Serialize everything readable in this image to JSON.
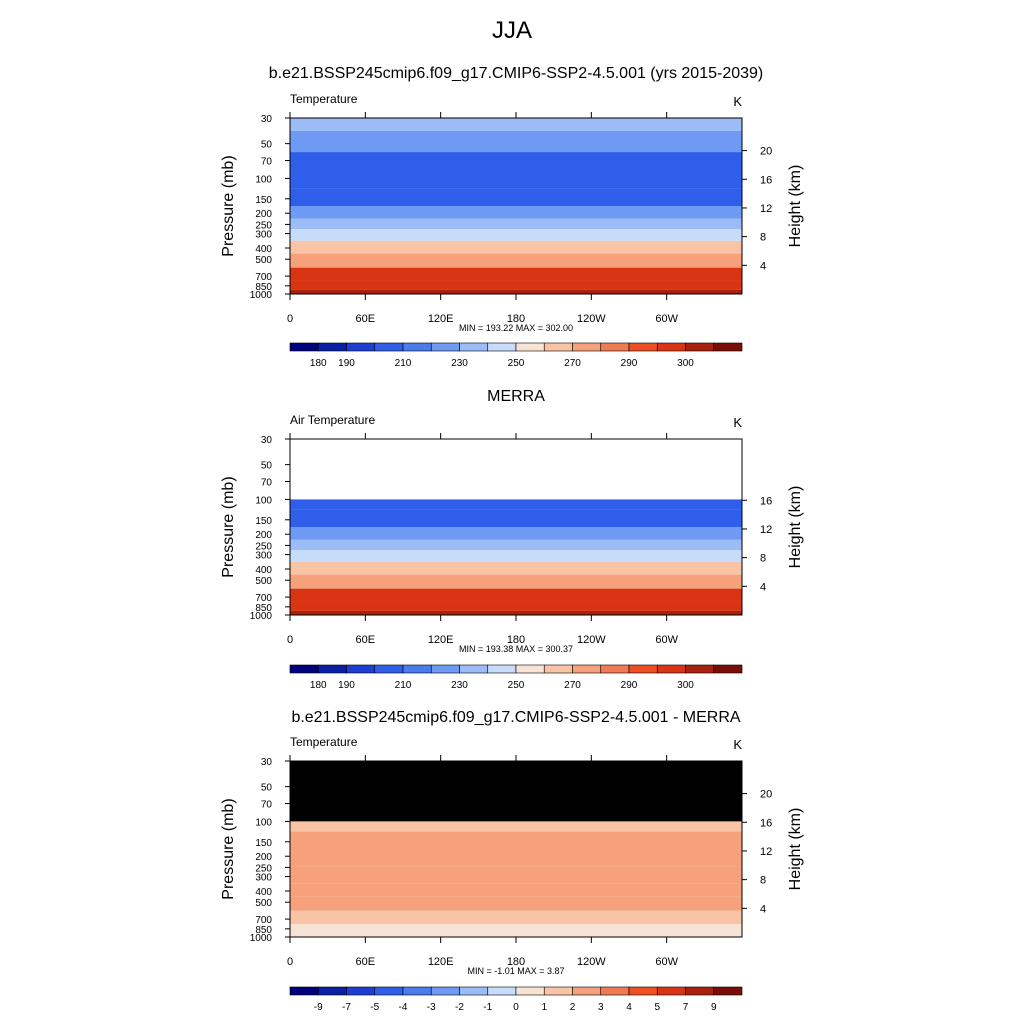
{
  "page": {
    "title": "JJA"
  },
  "chart_data": [
    {
      "type": "heatmap",
      "title": "b.e21.BSSP245cmip6.f09_g17.CMIP6-SSP2-4.5.001 (yrs 2015-2039)",
      "left_label": "Temperature",
      "units": "K",
      "ylabel": "Pressure (mb)",
      "y2label": "Height (km)",
      "x_ticks": [
        {
          "lon": 0,
          "label": "0"
        },
        {
          "lon": 60,
          "label": "60E"
        },
        {
          "lon": 120,
          "label": "120E"
        },
        {
          "lon": 180,
          "label": "180"
        },
        {
          "lon": 240,
          "label": "120W"
        },
        {
          "lon": 300,
          "label": "60W"
        }
      ],
      "y_ticks": [
        30,
        50,
        70,
        100,
        150,
        200,
        250,
        300,
        400,
        500,
        700,
        850,
        1000
      ],
      "ylim": [
        1000,
        30
      ],
      "height_ticks": [
        4,
        8,
        12,
        16,
        20
      ],
      "stats": "MIN = 193.22  MAX = 302.00",
      "colorbar_labels": [
        "180",
        "190",
        "210",
        "230",
        "250",
        "270",
        "290",
        "300"
      ],
      "field_by_pressure": [
        {
          "p": 30,
          "v": 220
        },
        {
          "p": 50,
          "v": 212
        },
        {
          "p": 70,
          "v": 205
        },
        {
          "p": 100,
          "v": 202
        },
        {
          "p": 150,
          "v": 208
        },
        {
          "p": 200,
          "v": 215
        },
        {
          "p": 250,
          "v": 228
        },
        {
          "p": 300,
          "v": 238
        },
        {
          "p": 400,
          "v": 253
        },
        {
          "p": 500,
          "v": 265
        },
        {
          "p": 700,
          "v": 282
        },
        {
          "p": 850,
          "v": 288
        },
        {
          "p": 1000,
          "v": 297
        }
      ],
      "missing_above_p": null,
      "levels": [
        180,
        190,
        200,
        210,
        220,
        230,
        240,
        250,
        260,
        270,
        280,
        290,
        300
      ]
    },
    {
      "type": "heatmap",
      "title": "MERRA",
      "left_label": "Air Temperature",
      "units": "K",
      "ylabel": "Pressure (mb)",
      "y2label": "Height (km)",
      "x_ticks": [
        {
          "lon": 0,
          "label": "0"
        },
        {
          "lon": 60,
          "label": "60E"
        },
        {
          "lon": 120,
          "label": "120E"
        },
        {
          "lon": 180,
          "label": "180"
        },
        {
          "lon": 240,
          "label": "120W"
        },
        {
          "lon": 300,
          "label": "60W"
        }
      ],
      "y_ticks": [
        30,
        50,
        70,
        100,
        150,
        200,
        250,
        300,
        400,
        500,
        700,
        850,
        1000
      ],
      "ylim": [
        1000,
        30
      ],
      "height_ticks": [
        4,
        8,
        12,
        16
      ],
      "stats": "MIN = 193.38  MAX = 300.37",
      "colorbar_labels": [
        "180",
        "190",
        "210",
        "230",
        "250",
        "270",
        "290",
        "300"
      ],
      "field_by_pressure": [
        {
          "p": 100,
          "v": 202
        },
        {
          "p": 150,
          "v": 207
        },
        {
          "p": 200,
          "v": 214
        },
        {
          "p": 250,
          "v": 227
        },
        {
          "p": 300,
          "v": 237
        },
        {
          "p": 400,
          "v": 252
        },
        {
          "p": 500,
          "v": 264
        },
        {
          "p": 700,
          "v": 281
        },
        {
          "p": 850,
          "v": 287
        },
        {
          "p": 1000,
          "v": 296
        }
      ],
      "missing_above_p": 100,
      "missing_color": "#ffffff",
      "levels": [
        180,
        190,
        200,
        210,
        220,
        230,
        240,
        250,
        260,
        270,
        280,
        290,
        300
      ]
    },
    {
      "type": "heatmap",
      "title": "b.e21.BSSP245cmip6.f09_g17.CMIP6-SSP2-4.5.001 - MERRA",
      "left_label": "Temperature",
      "units": "K",
      "ylabel": "Pressure (mb)",
      "y2label": "Height (km)",
      "x_ticks": [
        {
          "lon": 0,
          "label": "0"
        },
        {
          "lon": 60,
          "label": "60E"
        },
        {
          "lon": 120,
          "label": "120E"
        },
        {
          "lon": 180,
          "label": "180"
        },
        {
          "lon": 240,
          "label": "120W"
        },
        {
          "lon": 300,
          "label": "60W"
        }
      ],
      "y_ticks": [
        30,
        50,
        70,
        100,
        150,
        200,
        250,
        300,
        400,
        500,
        700,
        850,
        1000
      ],
      "ylim": [
        1000,
        30
      ],
      "height_ticks": [
        4,
        8,
        12,
        16,
        20
      ],
      "stats": "MIN =  -1.01  MAX =   3.87",
      "colorbar_labels": [
        "-9",
        "-7",
        "-5",
        "-4",
        "-3",
        "-2",
        "-1",
        "0",
        "1",
        "2",
        "3",
        "4",
        "5",
        "7",
        "9"
      ],
      "field_by_pressure": [
        {
          "p": 100,
          "v": 1.5
        },
        {
          "p": 150,
          "v": 2.5
        },
        {
          "p": 200,
          "v": 2.5
        },
        {
          "p": 300,
          "v": 2.5
        },
        {
          "p": 400,
          "v": 2.5
        },
        {
          "p": 500,
          "v": 2.5
        },
        {
          "p": 700,
          "v": 1.5
        },
        {
          "p": 850,
          "v": 0.5
        },
        {
          "p": 1000,
          "v": 0.5
        }
      ],
      "missing_above_p": 100,
      "missing_color": "#000000",
      "levels": [
        -9,
        -7,
        -5,
        -4,
        -3,
        -2,
        -1,
        0,
        1,
        2,
        3,
        4,
        5,
        7,
        9
      ]
    }
  ],
  "colors": {
    "palette": [
      "#00007f",
      "#0b1fa6",
      "#1c3ed2",
      "#2f5eea",
      "#4a7cf0",
      "#6f9af4",
      "#9cbcf7",
      "#c7dcfa",
      "#f7e3d4",
      "#f9c4a6",
      "#f6a07c",
      "#f27a52",
      "#ee4f24",
      "#d93414",
      "#a9200c",
      "#7a0e06"
    ]
  }
}
